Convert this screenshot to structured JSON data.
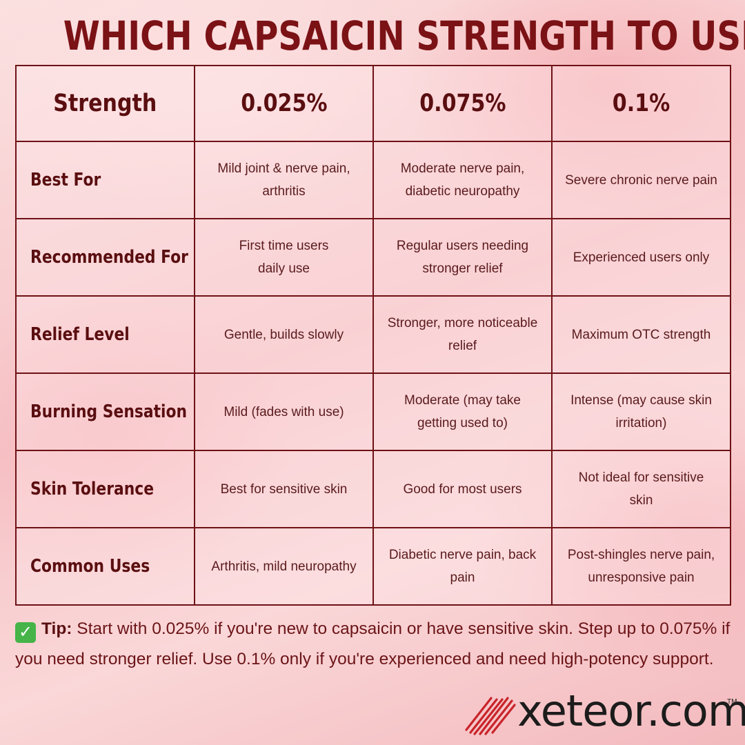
{
  "title": "WHICH CAPSAICIN STRENGTH TO USE",
  "table": {
    "columns": [
      "Strength",
      "0.025%",
      "0.075%",
      "0.1%"
    ],
    "rows": [
      {
        "label": "Best For",
        "cells": [
          "Mild joint & nerve pain, arthritis",
          "Moderate nerve pain, diabetic neuropathy",
          "Severe chronic nerve pain"
        ]
      },
      {
        "label": "Recommended For",
        "cells": [
          "First time users daily use",
          "Regular users needing stronger relief",
          "Experienced users only"
        ]
      },
      {
        "label": "Relief Level",
        "cells": [
          "Gentle, builds slowly",
          "Stronger, more noticeable relief",
          "Maximum OTC strength"
        ]
      },
      {
        "label": "Burning Sensation",
        "cells": [
          "Mild (fades with use)",
          "Moderate (may take getting used to)",
          "Intense (may cause skin irritation)"
        ]
      },
      {
        "label": "Skin Tolerance",
        "cells": [
          "Best for sensitive skin",
          "Good for most users",
          "Not ideal for sensitive skin"
        ]
      },
      {
        "label": "Common Uses",
        "cells": [
          "Arthritis, mild neuropathy",
          "Diabetic nerve pain, back pain",
          "Post-shingles nerve pain, unresponsive pain"
        ]
      }
    ]
  },
  "tip": {
    "icon": "check-mark-icon",
    "label": "Tip:",
    "text": "Start with 0.025% if you're new to capsaicin or have sensitive skin. Step up to 0.075% if you need stronger relief. Use 0.1% only if you're experienced and need high-potency support."
  },
  "logo": {
    "text": "xeteor.com",
    "trademark": "TM"
  },
  "colors": {
    "title": "#7b1216",
    "grid": "#6e1115",
    "check": "#46b449",
    "logo_stripes": "#c8242a"
  }
}
